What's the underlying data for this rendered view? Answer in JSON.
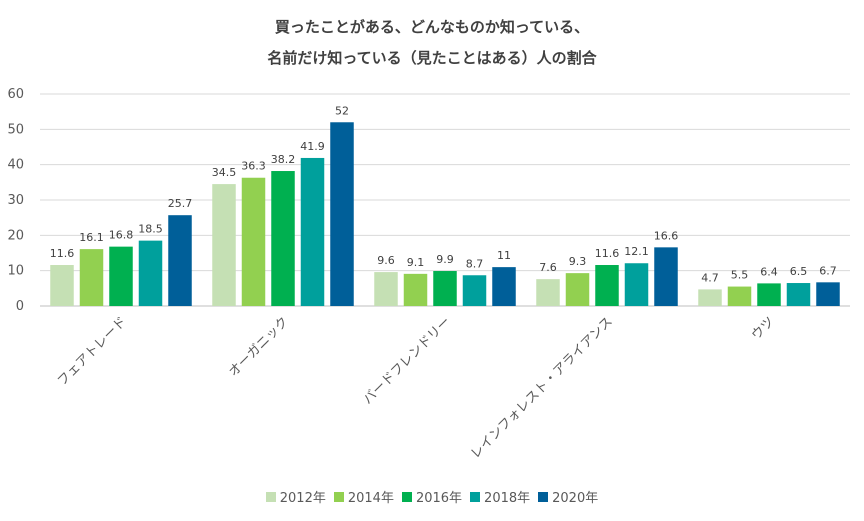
{
  "chart_data": {
    "type": "bar",
    "title_line1": "買ったことがある、どんなものか知っている、",
    "title_line2": "名前だけ知っている（見たことはある）人の割合",
    "categories": [
      "フェアトレード",
      "オーガニック",
      "バードフレンドリー",
      "レインフォレスト・アライアンス",
      "ウツ"
    ],
    "series": [
      {
        "name": "2012年",
        "color": "#c5e0b4",
        "values": [
          11.6,
          34.5,
          9.6,
          7.6,
          4.7
        ]
      },
      {
        "name": "2014年",
        "color": "#92d050",
        "values": [
          16.1,
          36.3,
          9.1,
          9.3,
          5.5
        ]
      },
      {
        "name": "2016年",
        "color": "#00b050",
        "values": [
          16.8,
          38.2,
          9.9,
          11.6,
          6.4
        ]
      },
      {
        "name": "2018年",
        "color": "#00a09c",
        "values": [
          18.5,
          41.9,
          8.7,
          12.1,
          6.5
        ]
      },
      {
        "name": "2020年",
        "color": "#005f99",
        "values": [
          25.7,
          52,
          11,
          16.6,
          6.7
        ]
      }
    ],
    "ylim": [
      0,
      60
    ],
    "yticks": [
      0,
      10,
      20,
      30,
      40,
      50,
      60
    ],
    "grid": true,
    "legend_position": "bottom"
  }
}
